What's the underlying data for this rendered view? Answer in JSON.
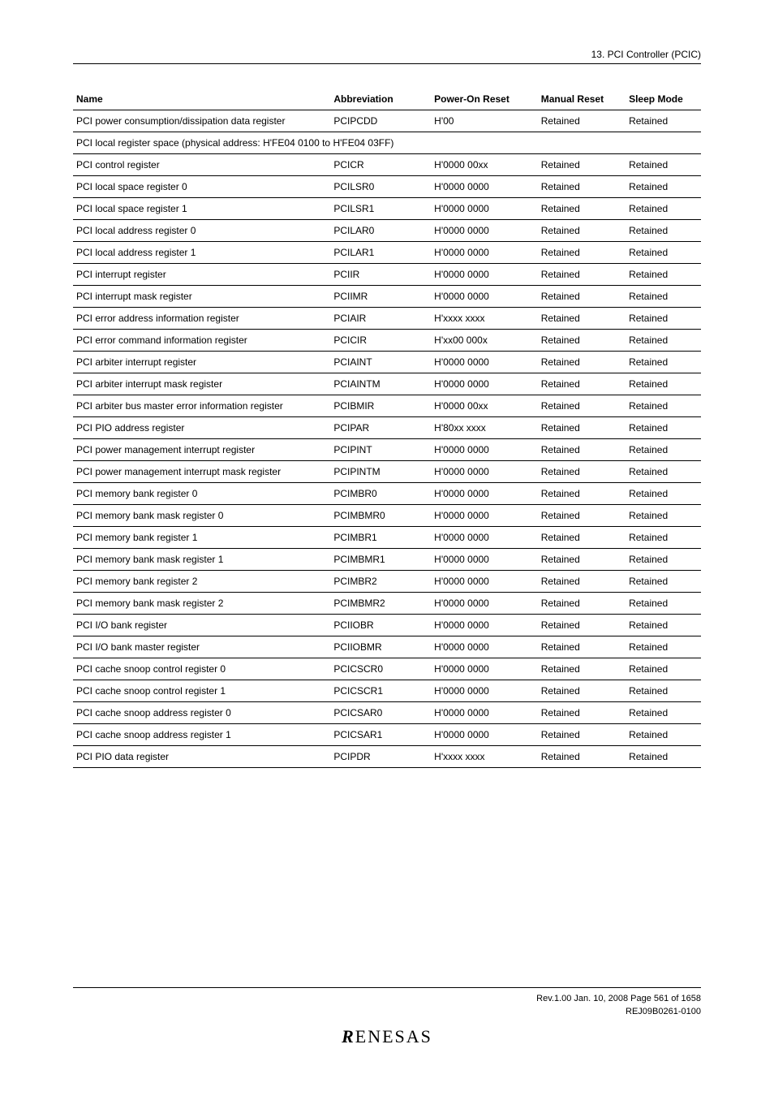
{
  "header": {
    "chapter": "13.   PCI Controller (PCIC)"
  },
  "table": {
    "columns": {
      "name": "Name",
      "abbr": "Abbreviation",
      "por": "Power-On Reset",
      "mr": "Manual Reset",
      "sm": "Sleep Mode"
    },
    "top_rows": [
      {
        "name": "PCI power consumption/dissipation data register",
        "abbr": "PCIPCDD",
        "por": "H'00",
        "mr": "Retained",
        "sm": "Retained"
      }
    ],
    "section_label": "PCI local register space (physical address: H'FE04 0100 to H'FE04 03FF)",
    "rows": [
      {
        "name": "PCI control register",
        "abbr": "PCICR",
        "por": "H'0000 00xx",
        "mr": "Retained",
        "sm": "Retained"
      },
      {
        "name": "PCI local space register 0",
        "abbr": "PCILSR0",
        "por": "H'0000 0000",
        "mr": "Retained",
        "sm": "Retained"
      },
      {
        "name": "PCI local space register 1",
        "abbr": "PCILSR1",
        "por": "H'0000 0000",
        "mr": "Retained",
        "sm": "Retained"
      },
      {
        "name": "PCI local address register 0",
        "abbr": "PCILAR0",
        "por": "H'0000 0000",
        "mr": "Retained",
        "sm": "Retained"
      },
      {
        "name": "PCI local address register 1",
        "abbr": "PCILAR1",
        "por": "H'0000 0000",
        "mr": "Retained",
        "sm": "Retained"
      },
      {
        "name": "PCI interrupt register",
        "abbr": "PCIIR",
        "por": "H'0000 0000",
        "mr": "Retained",
        "sm": "Retained"
      },
      {
        "name": "PCI interrupt mask register",
        "abbr": "PCIIMR",
        "por": "H'0000 0000",
        "mr": "Retained",
        "sm": "Retained"
      },
      {
        "name": "PCI error address information register",
        "abbr": "PCIAIR",
        "por": "H'xxxx xxxx",
        "mr": "Retained",
        "sm": "Retained"
      },
      {
        "name": "PCI error command information register",
        "abbr": "PCICIR",
        "por": "H'xx00 000x",
        "mr": "Retained",
        "sm": "Retained"
      },
      {
        "name": "PCI arbiter interrupt register",
        "abbr": "PCIAINT",
        "por": "H'0000 0000",
        "mr": "Retained",
        "sm": "Retained"
      },
      {
        "name": "PCI arbiter interrupt mask register",
        "abbr": "PCIAINTM",
        "por": "H'0000 0000",
        "mr": "Retained",
        "sm": "Retained"
      },
      {
        "name": "PCI arbiter bus master error information register",
        "abbr": "PCIBMIR",
        "por": "H'0000 00xx",
        "mr": "Retained",
        "sm": "Retained"
      },
      {
        "name": "PCI PIO address register",
        "abbr": "PCIPAR",
        "por": "H'80xx xxxx",
        "mr": "Retained",
        "sm": "Retained"
      },
      {
        "name": "PCI power management interrupt register",
        "abbr": "PCIPINT",
        "por": "H'0000 0000",
        "mr": "Retained",
        "sm": "Retained"
      },
      {
        "name": "PCI power management interrupt mask register",
        "abbr": "PCIPINTM",
        "por": "H'0000 0000",
        "mr": "Retained",
        "sm": "Retained"
      },
      {
        "name": "PCI memory bank register 0",
        "abbr": "PCIMBR0",
        "por": "H'0000 0000",
        "mr": "Retained",
        "sm": "Retained"
      },
      {
        "name": "PCI memory bank mask register 0",
        "abbr": "PCIMBMR0",
        "por": "H'0000 0000",
        "mr": "Retained",
        "sm": "Retained"
      },
      {
        "name": "PCI memory bank register 1",
        "abbr": "PCIMBR1",
        "por": "H'0000 0000",
        "mr": "Retained",
        "sm": "Retained"
      },
      {
        "name": "PCI memory bank mask register 1",
        "abbr": "PCIMBMR1",
        "por": "H'0000 0000",
        "mr": "Retained",
        "sm": "Retained"
      },
      {
        "name": "PCI memory bank register 2",
        "abbr": "PCIMBR2",
        "por": "H'0000 0000",
        "mr": "Retained",
        "sm": "Retained"
      },
      {
        "name": "PCI memory bank mask register 2",
        "abbr": "PCIMBMR2",
        "por": "H'0000 0000",
        "mr": "Retained",
        "sm": "Retained"
      },
      {
        "name": "PCI I/O bank register",
        "abbr": "PCIIOBR",
        "por": "H'0000 0000",
        "mr": "Retained",
        "sm": "Retained"
      },
      {
        "name": "PCI I/O bank master register",
        "abbr": "PCIIOBMR",
        "por": "H'0000 0000",
        "mr": "Retained",
        "sm": "Retained"
      },
      {
        "name": "PCI cache snoop control register 0",
        "abbr": "PCICSCR0",
        "por": "H'0000 0000",
        "mr": "Retained",
        "sm": "Retained"
      },
      {
        "name": "PCI cache snoop control register 1",
        "abbr": "PCICSCR1",
        "por": "H'0000 0000",
        "mr": "Retained",
        "sm": "Retained"
      },
      {
        "name": "PCI cache snoop address register 0",
        "abbr": "PCICSAR0",
        "por": "H'0000 0000",
        "mr": "Retained",
        "sm": "Retained"
      },
      {
        "name": "PCI cache snoop address register 1",
        "abbr": "PCICSAR1",
        "por": "H'0000 0000",
        "mr": "Retained",
        "sm": "Retained"
      },
      {
        "name": "PCI PIO data register",
        "abbr": "PCIPDR",
        "por": "H'xxxx xxxx",
        "mr": "Retained",
        "sm": "Retained"
      }
    ]
  },
  "footer": {
    "line1": "Rev.1.00  Jan. 10, 2008  Page 561 of 1658",
    "line2": "REJ09B0261-0100",
    "logo": "RENESAS"
  }
}
